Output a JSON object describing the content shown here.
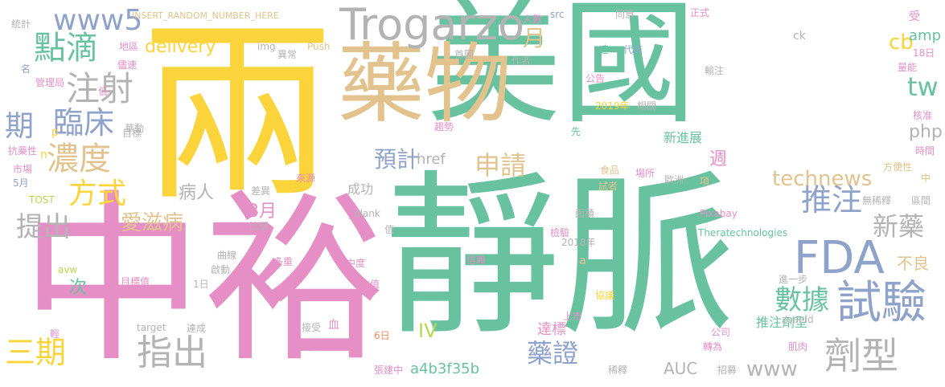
{
  "palette": {
    "green": "#68c29f",
    "gold": "#e2c38d",
    "pink": "#e58fc6",
    "yellow": "#fbd33a",
    "blue": "#8ea2ca",
    "gray": "#b3b3b3",
    "orange": "#f58c63",
    "lime": "#b7d853"
  },
  "words": [
    {
      "text": "美國",
      "color": "green"
    },
    {
      "text": "靜脈",
      "color": "green"
    },
    {
      "text": "中裕",
      "color": "pink"
    },
    {
      "text": "兩",
      "color": "yellow"
    },
    {
      "text": "藥物",
      "color": "gold"
    },
    {
      "text": "Trogarzo",
      "color": "gray"
    },
    {
      "text": "FDA",
      "color": "blue"
    },
    {
      "text": "www5",
      "color": "blue"
    },
    {
      "text": "點滴",
      "color": "green"
    },
    {
      "text": "注射",
      "color": "gray"
    },
    {
      "text": "期",
      "color": "blue"
    },
    {
      "text": "臨床",
      "color": "blue"
    },
    {
      "text": "濃度",
      "color": "gold"
    },
    {
      "text": "方式",
      "color": "yellow"
    },
    {
      "text": "提出",
      "color": "gray"
    },
    {
      "text": "三期",
      "color": "yellow"
    },
    {
      "text": "指出",
      "color": "gray"
    },
    {
      "text": "愛滋病",
      "color": "gold"
    },
    {
      "text": "試驗",
      "color": "blue"
    },
    {
      "text": "劑型",
      "color": "gray"
    },
    {
      "text": "數據",
      "color": "green"
    },
    {
      "text": "推注",
      "color": "blue"
    },
    {
      "text": "technews",
      "color": "gold"
    },
    {
      "text": "新藥",
      "color": "gray"
    },
    {
      "text": "申請",
      "color": "gold"
    },
    {
      "text": "預計",
      "color": "blue"
    },
    {
      "text": "藥證",
      "color": "blue"
    },
    {
      "text": "www",
      "color": "gray"
    },
    {
      "text": "tw",
      "color": "green"
    },
    {
      "text": "cb",
      "color": "yellow"
    },
    {
      "text": "amp",
      "color": "green"
    },
    {
      "text": "月",
      "color": "gold"
    },
    {
      "text": "delivery",
      "color": "yellow"
    },
    {
      "text": "病人",
      "color": "gray"
    },
    {
      "text": "3月",
      "color": "pink"
    },
    {
      "text": "php",
      "color": "gray"
    },
    {
      "text": "週",
      "color": "pink"
    },
    {
      "text": "新進展",
      "color": "green"
    },
    {
      "text": "不良",
      "color": "gold"
    },
    {
      "text": "推注劑型",
      "color": "green"
    },
    {
      "text": "AUC",
      "color": "gray"
    },
    {
      "text": "a4b3f35b",
      "color": "green"
    },
    {
      "text": "IV",
      "color": "lime"
    },
    {
      "text": "達標",
      "color": "pink"
    },
    {
      "text": "次",
      "color": "green"
    },
    {
      "text": "href",
      "color": "gray"
    },
    {
      "text": "成功",
      "color": "gray"
    },
    {
      "text": "INSERT_RANDOM_NUMBER_HERE",
      "color": "gold"
    },
    {
      "text": "統計",
      "color": "gray"
    },
    {
      "text": "名",
      "color": "blue"
    },
    {
      "text": "管理局",
      "color": "pink"
    },
    {
      "text": "抗藥性",
      "color": "pink"
    },
    {
      "text": "市場",
      "color": "pink"
    },
    {
      "text": "5月",
      "color": "blue"
    },
    {
      "text": "TOST",
      "color": "lime"
    },
    {
      "text": "avw",
      "color": "lime"
    },
    {
      "text": "target",
      "color": "gray"
    },
    {
      "text": "目標值",
      "color": "pink"
    },
    {
      "text": "1日",
      "color": "gray"
    },
    {
      "text": "達成",
      "color": "gray"
    },
    {
      "text": "接受",
      "color": "gray"
    },
    {
      "text": "血",
      "color": "pink"
    },
    {
      "text": "窄於",
      "color": "pink"
    },
    {
      "text": "6日",
      "color": "orange"
    },
    {
      "text": "張建中",
      "color": "pink"
    },
    {
      "text": "地區",
      "color": "pink"
    },
    {
      "text": "儘速",
      "color": "pink"
    },
    {
      "text": "低",
      "color": "pink"
    },
    {
      "text": "華動",
      "color": "gray"
    },
    {
      "text": "目標",
      "color": "gray"
    },
    {
      "text": "img",
      "color": "gray"
    },
    {
      "text": "異常",
      "color": "gray"
    },
    {
      "text": "Push",
      "color": "gold"
    },
    {
      "text": "首圖",
      "color": "gray"
    },
    {
      "text": "作者",
      "color": "gray"
    },
    {
      "text": "人數",
      "color": "pink"
    },
    {
      "text": "src",
      "color": "blue"
    },
    {
      "text": "同意",
      "color": "gray"
    },
    {
      "text": "正式",
      "color": "pink"
    },
    {
      "text": "受",
      "color": "pink"
    },
    {
      "text": "18日",
      "color": "pink"
    },
    {
      "text": "量能",
      "color": "pink"
    },
    {
      "text": "ck",
      "color": "gray"
    },
    {
      "text": "遠",
      "color": "green"
    },
    {
      "text": "代表",
      "color": "blue"
    },
    {
      "text": "輸注",
      "color": "gray"
    },
    {
      "text": "公告",
      "color": "pink"
    },
    {
      "text": "2019年",
      "color": "yellow"
    },
    {
      "text": "相關",
      "color": "gray"
    },
    {
      "text": "核准",
      "color": "pink"
    },
    {
      "text": "時間",
      "color": "pink"
    },
    {
      "text": "趨勢",
      "color": "pink"
    },
    {
      "text": "先",
      "color": "green"
    },
    {
      "text": "食品",
      "color": "gold"
    },
    {
      "text": "試者",
      "color": "gold"
    },
    {
      "text": "場所",
      "color": "pink"
    },
    {
      "text": "歐洲",
      "color": "gray"
    },
    {
      "text": "項",
      "color": "gold"
    },
    {
      "text": "方便性",
      "color": "gold"
    },
    {
      "text": "中",
      "color": "gold"
    },
    {
      "text": "無稀釋",
      "color": "gray"
    },
    {
      "text": "區間",
      "color": "gray"
    },
    {
      "text": "來源",
      "color": "pink"
    },
    {
      "text": "差異",
      "color": "gray"
    },
    {
      "text": "_blank",
      "color": "gray"
    },
    {
      "text": "比例",
      "color": "gray"
    },
    {
      "text": "值",
      "color": "gray"
    },
    {
      "text": "面積",
      "color": "gray"
    },
    {
      "text": "檢驗",
      "color": "pink"
    },
    {
      "text": "2018年",
      "color": "gray"
    },
    {
      "text": "Pixabay",
      "color": "pink"
    },
    {
      "text": "Theratechnologies",
      "color": "green"
    },
    {
      "text": "a",
      "color": "gold"
    },
    {
      "text": "曲線",
      "color": "gray"
    },
    {
      "text": "多重",
      "color": "pink"
    },
    {
      "text": "中度",
      "color": "pink"
    },
    {
      "text": "信賴",
      "color": "pink"
    },
    {
      "text": "啟動",
      "color": "gray"
    },
    {
      "text": "比值",
      "color": "pink"
    },
    {
      "text": "上市",
      "color": "pink"
    },
    {
      "text": "協議",
      "color": "yellow"
    },
    {
      "text": "進一步",
      "color": "gray"
    },
    {
      "text": "zoneid",
      "color": "gray"
    },
    {
      "text": "公司",
      "color": "pink"
    },
    {
      "text": "轉為",
      "color": "pink"
    },
    {
      "text": "肌肉",
      "color": "pink"
    },
    {
      "text": "招募",
      "color": "gray"
    },
    {
      "text": "稀釋",
      "color": "gray"
    },
    {
      "text": "輕",
      "color": "pink"
    },
    {
      "text": "n",
      "color": "yellow"
    },
    {
      "text": "p",
      "color": "yellow"
    }
  ]
}
